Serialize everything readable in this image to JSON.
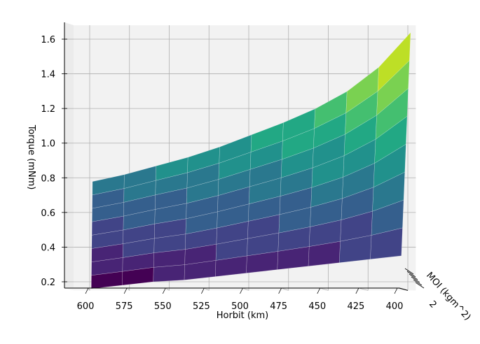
{
  "chart_data": {
    "type": "surface3d",
    "title": "",
    "xlabel": "Horbit (km)",
    "ylabel": "MOI (kgm^2)",
    "zlabel": "Torque (mNm)",
    "x_ticks": [
      600,
      575,
      550,
      525,
      500,
      475,
      450,
      425,
      400
    ],
    "y_ticks_visible": [
      "2"
    ],
    "z_ticks": [
      "0.2",
      "0.4",
      "0.6",
      "0.8",
      "1.0",
      "1.2",
      "1.4",
      "1.6"
    ],
    "xlim": [
      610,
      395
    ],
    "zlim": [
      0.15,
      1.68
    ],
    "colormap": "viridis",
    "grid": true,
    "surface": {
      "x": [
        600,
        580,
        560,
        540,
        520,
        500,
        480,
        460,
        440,
        420,
        400
      ],
      "moi_rows": 8,
      "z_min_row": [
        0.16,
        0.18,
        0.2,
        0.21,
        0.23,
        0.25,
        0.27,
        0.29,
        0.31,
        0.33,
        0.35
      ],
      "z_max_row": [
        0.75,
        0.79,
        0.84,
        0.89,
        0.95,
        1.02,
        1.09,
        1.17,
        1.27,
        1.41,
        1.61
      ]
    },
    "colors": [
      "#440154",
      "#482475",
      "#414487",
      "#355f8d",
      "#2a788e",
      "#21918c",
      "#22a884",
      "#44bf70",
      "#7ad151",
      "#bddf26",
      "#fde725"
    ]
  }
}
